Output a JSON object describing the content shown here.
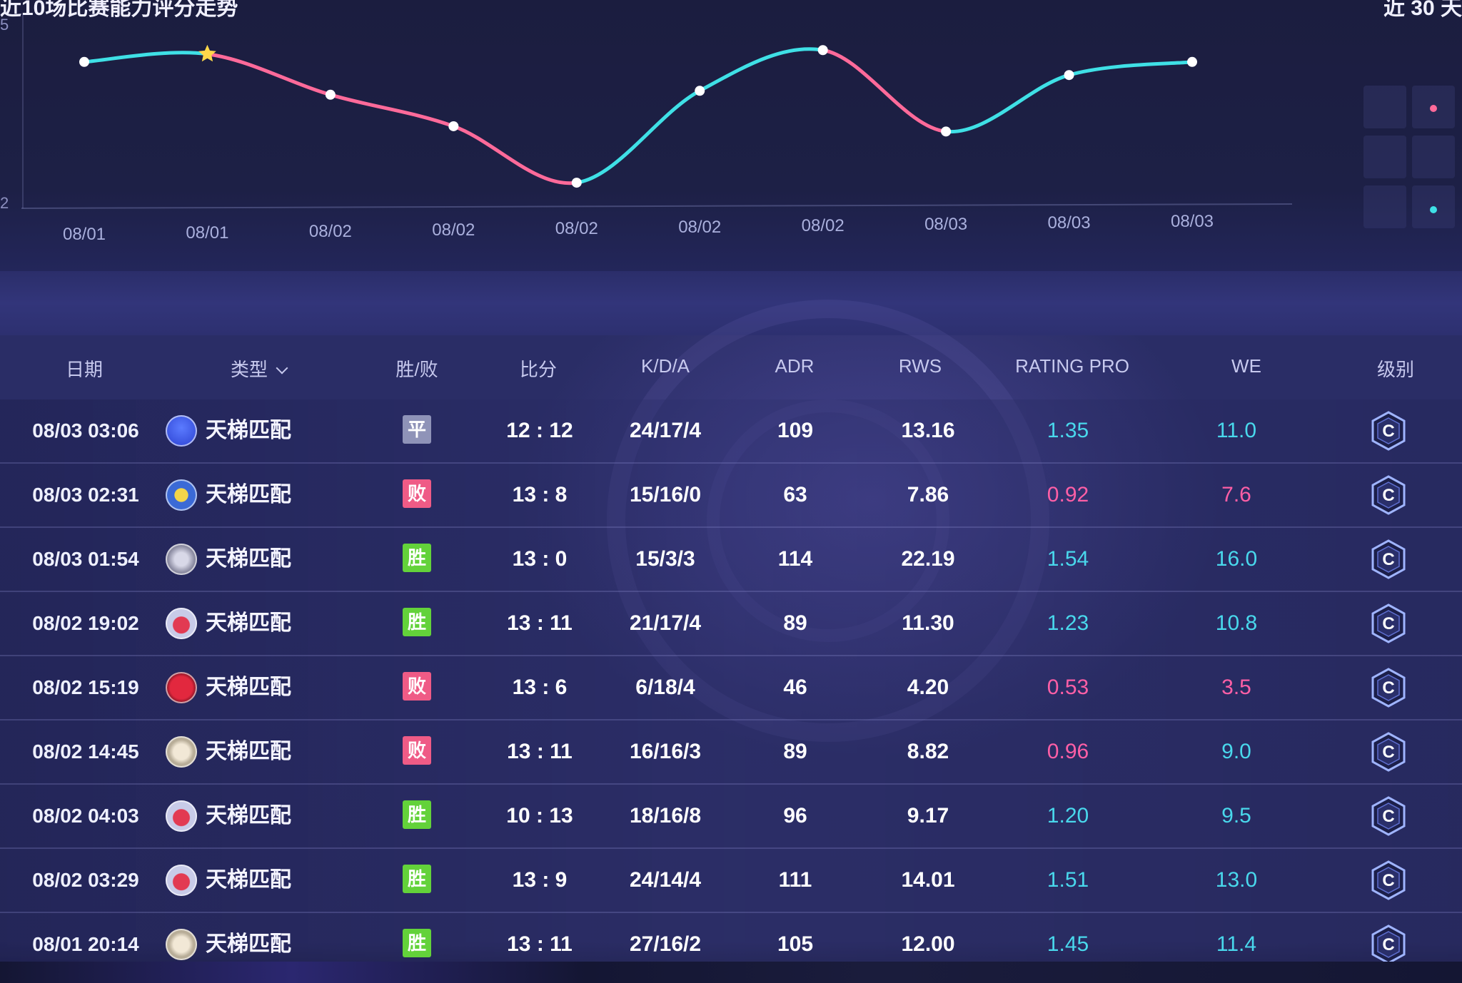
{
  "chart": {
    "title": "近10场比赛能力评分走势",
    "range_label": "近 30 天",
    "y_tick_top": "5",
    "y_tick_bottom": "2",
    "colors": {
      "up": "#3fe0e6",
      "down": "#ff6a9a",
      "point": "#ffffff",
      "star": "#ffd84a"
    }
  },
  "chart_data": {
    "type": "line",
    "title": "",
    "xlabel": "",
    "ylabel": "",
    "categories": [
      "08/01",
      "08/01",
      "08/02",
      "08/02",
      "08/02",
      "08/02",
      "08/02",
      "08/03",
      "08/03",
      "08/03"
    ],
    "series": [
      {
        "values": [
          1.45,
          1.51,
          1.2,
          0.96,
          0.53,
          1.23,
          1.54,
          0.92,
          1.35,
          1.45
        ]
      }
    ],
    "highlight_index": 1,
    "grid": false
  },
  "table": {
    "columns": [
      "日期",
      "类型",
      "胜/败",
      "比分",
      "K/D/A",
      "ADR",
      "RWS",
      "RATING PRO",
      "WE",
      "级别"
    ],
    "colors": {
      "good": "#49d8ec",
      "bad": "#ff5fa6",
      "win": "#63d23a",
      "loss": "#ef5b86",
      "draw": "#8f93b8"
    },
    "rows": [
      {
        "date": "08/03 03:06",
        "type": "天梯匹配",
        "icon": "blue-globe-map-icon",
        "result": "平",
        "result_kind": "draw",
        "score": "12 : 12",
        "kda": "24/17/4",
        "adr": "109",
        "rws": "13.16",
        "rating": "1.35",
        "rating_kind": "good",
        "we": "11.0",
        "we_kind": "good",
        "rank": "C"
      },
      {
        "date": "08/03 02:31",
        "type": "天梯匹配",
        "icon": "blue-yellow-map-icon",
        "result": "败",
        "result_kind": "loss",
        "score": "13 : 8",
        "kda": "15/16/0",
        "adr": "63",
        "rws": "7.86",
        "rating": "0.92",
        "rating_kind": "bad",
        "we": "7.6",
        "we_kind": "bad",
        "rank": "C"
      },
      {
        "date": "08/03 01:54",
        "type": "天梯匹配",
        "icon": "gear-map-icon",
        "result": "胜",
        "result_kind": "win",
        "score": "13 : 0",
        "kda": "15/3/3",
        "adr": "114",
        "rws": "22.19",
        "rating": "1.54",
        "rating_kind": "good",
        "we": "16.0",
        "we_kind": "good",
        "rank": "C"
      },
      {
        "date": "08/02 19:02",
        "type": "天梯匹配",
        "icon": "red-shield-map-icon",
        "result": "胜",
        "result_kind": "win",
        "score": "13 : 11",
        "kda": "21/17/4",
        "adr": "89",
        "rws": "11.30",
        "rating": "1.23",
        "rating_kind": "good",
        "we": "10.8",
        "we_kind": "good",
        "rank": "C"
      },
      {
        "date": "08/02 15:19",
        "type": "天梯匹配",
        "icon": "red-crest-map-icon",
        "result": "败",
        "result_kind": "loss",
        "score": "13 : 6",
        "kda": "6/18/4",
        "adr": "46",
        "rws": "4.20",
        "rating": "0.53",
        "rating_kind": "bad",
        "we": "3.5",
        "we_kind": "bad",
        "rank": "C"
      },
      {
        "date": "08/02 14:45",
        "type": "天梯匹配",
        "icon": "white-seal-map-icon",
        "result": "败",
        "result_kind": "loss",
        "score": "13 : 11",
        "kda": "16/16/3",
        "adr": "89",
        "rws": "8.82",
        "rating": "0.96",
        "rating_kind": "bad",
        "we": "9.0",
        "we_kind": "good",
        "rank": "C"
      },
      {
        "date": "08/02 04:03",
        "type": "天梯匹配",
        "icon": "red-shield-map-icon",
        "result": "胜",
        "result_kind": "win",
        "score": "10 : 13",
        "kda": "18/16/8",
        "adr": "96",
        "rws": "9.17",
        "rating": "1.20",
        "rating_kind": "good",
        "we": "9.5",
        "we_kind": "good",
        "rank": "C"
      },
      {
        "date": "08/02 03:29",
        "type": "天梯匹配",
        "icon": "red-shield-map-icon",
        "result": "胜",
        "result_kind": "win",
        "score": "13 : 9",
        "kda": "24/14/4",
        "adr": "111",
        "rws": "14.01",
        "rating": "1.51",
        "rating_kind": "good",
        "we": "13.0",
        "we_kind": "good",
        "rank": "C"
      },
      {
        "date": "08/01 20:14",
        "type": "天梯匹配",
        "icon": "white-seal-map-icon",
        "result": "胜",
        "result_kind": "win",
        "score": "13 : 11",
        "kda": "27/16/2",
        "adr": "105",
        "rws": "12.00",
        "rating": "1.45",
        "rating_kind": "good",
        "we": "11.4",
        "we_kind": "good",
        "rank": "C"
      }
    ]
  }
}
